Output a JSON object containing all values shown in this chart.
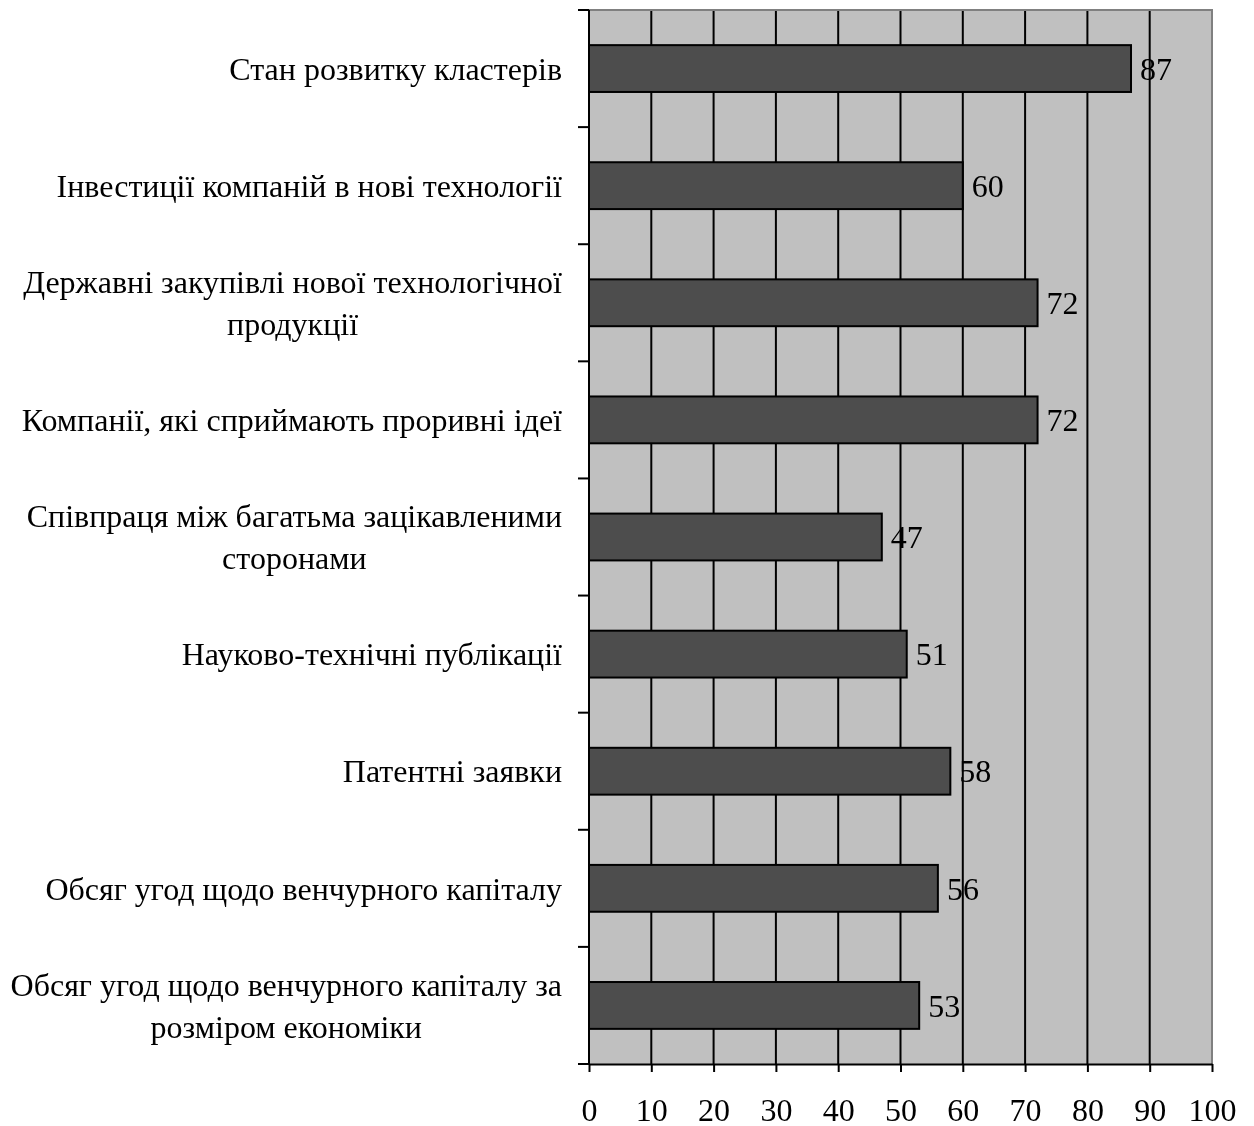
{
  "chart_data": {
    "type": "bar",
    "orientation": "horizontal",
    "categories": [
      "Стан розвитку кластерів",
      "Інвестиції компаній в нові технології",
      "Державні закупівлі нової технологічної продукції",
      "Компанії, які сприймають проривні ідеї",
      "Співпраця між багатьма зацікавленими сторонами",
      "Науково-технічні публікації",
      "Патентні заявки",
      "Обсяг угод щодо венчурного капіталу",
      "Обсяг угод щодо венчурного капіталу за розміром економіки"
    ],
    "values": [
      87,
      60,
      72,
      72,
      47,
      51,
      58,
      56,
      53
    ],
    "color": "#4d4d4d",
    "xlim": [
      0,
      100
    ],
    "xticks": [
      0,
      10,
      20,
      30,
      40,
      50,
      60,
      70,
      80,
      90,
      100
    ],
    "grid": "x",
    "data_labels": true
  }
}
